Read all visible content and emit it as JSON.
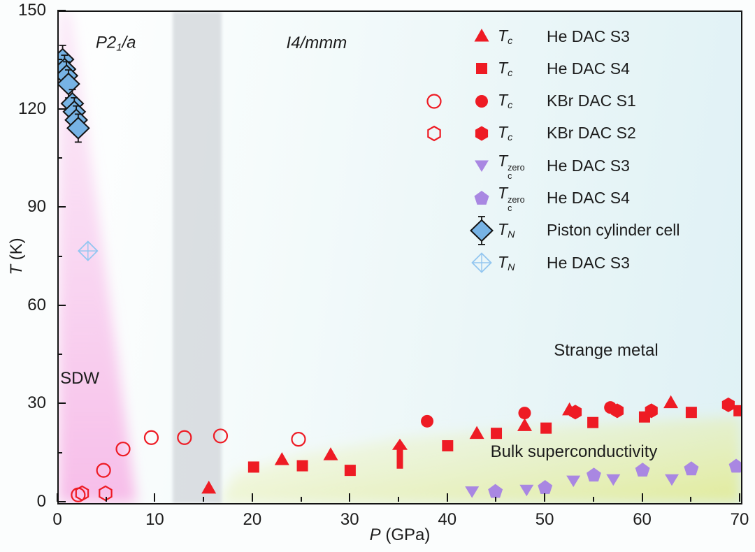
{
  "colors": {
    "red": "#ee1b24",
    "purple": "#a987e2",
    "blue_fill": "#77b3e5",
    "blue_open": "#93c6f0",
    "axis": "#141414",
    "gray_band": "#d6dade",
    "pink_top": "rgba(248,210,241,0.45)",
    "pink_bottom": "rgba(247,186,232,0.95)",
    "yellow_start": "rgba(238,243,196,0.10)",
    "yellow_end": "rgba(226,235,148,0.95)"
  },
  "axes": {
    "xlabel_segments": [
      {
        "text": "P",
        "italic": true
      },
      {
        "text": " (GPa)",
        "italic": false
      }
    ],
    "ylabel_segments": [
      {
        "text": "T",
        "italic": true
      },
      {
        "text": " (K)",
        "italic": false
      }
    ],
    "xlim": [
      0,
      70
    ],
    "ylim": [
      0,
      150
    ],
    "x_major_ticks": [
      0,
      10,
      20,
      30,
      40,
      50,
      60,
      70
    ],
    "x_minor_ticks": [
      5,
      15,
      25,
      35,
      45,
      55,
      65
    ],
    "y_major_ticks": [
      0,
      30,
      60,
      90,
      120,
      150
    ],
    "y_minor_ticks": [
      15,
      45,
      75,
      105,
      135
    ]
  },
  "chart_data": {
    "type": "scatter",
    "xlabel": "P (GPa)",
    "ylabel": "T (K)",
    "xlim": [
      0,
      70
    ],
    "ylim": [
      0,
      150
    ],
    "grid": false,
    "legend_position": "upper-right",
    "regions": {
      "gray_band_x": [
        11.7,
        16.7
      ],
      "pink_sdw_polygon": [
        [
          0,
          150
        ],
        [
          1.3,
          150
        ],
        [
          8,
          0
        ],
        [
          0,
          0
        ]
      ],
      "yellow_sc_polygon": [
        [
          16.5,
          0
        ],
        [
          18,
          9
        ],
        [
          25,
          15
        ],
        [
          35,
          20
        ],
        [
          50,
          23.5
        ],
        [
          70,
          26.5
        ],
        [
          70,
          0
        ]
      ]
    },
    "annotations": [
      {
        "name": "phase-label-p21a",
        "x": 6.0,
        "y": 140,
        "segments": [
          {
            "text": "P",
            "italic": true
          },
          {
            "text": "2",
            "italic": true
          },
          {
            "text": "1",
            "sub": true,
            "italic": true
          },
          {
            "text": "/",
            "italic": true
          },
          {
            "text": "a",
            "italic": true
          }
        ]
      },
      {
        "name": "phase-label-i4mmm",
        "x": 26.6,
        "y": 140,
        "segments": [
          {
            "text": "I",
            "italic": true
          },
          {
            "text": "4/",
            "italic": true
          },
          {
            "text": "mmm",
            "italic": true
          }
        ]
      },
      {
        "name": "phase-label-sdw",
        "x": 2.3,
        "y": 37.5,
        "segments": [
          {
            "text": "SDW",
            "italic": false
          }
        ]
      },
      {
        "name": "phase-label-strange-metal",
        "x": 56.3,
        "y": 46,
        "segments": [
          {
            "text": "Strange metal",
            "italic": false
          }
        ]
      },
      {
        "name": "phase-label-bulk-superconductivity",
        "x": 53.0,
        "y": 15.2,
        "segments": [
          {
            "text": "Bulk superconductivity",
            "italic": false
          }
        ]
      }
    ],
    "series": [
      {
        "name": "Tc KBr DAC S1 (onset, open)",
        "marker": "circle-open",
        "color": "#ee1b24",
        "points": [
          [
            2.0,
            2.5
          ],
          [
            4.6,
            10
          ],
          [
            6.6,
            16.5
          ],
          [
            9.5,
            20
          ],
          [
            12.9,
            20
          ],
          [
            16.6,
            20.5
          ],
          [
            24.6,
            19.5
          ]
        ]
      },
      {
        "name": "Tc KBr DAC S2 (onset, open)",
        "marker": "hexagon-open",
        "color": "#ee1b24",
        "points": [
          [
            2.4,
            3
          ],
          [
            4.8,
            3
          ]
        ]
      },
      {
        "name": "Tc He DAC S3",
        "marker": "triangle-up",
        "color": "#ee1b24",
        "points": [
          [
            15.4,
            4.5
          ],
          [
            22.9,
            13.2
          ],
          [
            27.9,
            14.7
          ],
          [
            42.9,
            21.2
          ],
          [
            47.8,
            23.6
          ],
          [
            52.4,
            28.4
          ],
          [
            62.8,
            30.6
          ]
        ]
      },
      {
        "name": "Tc He DAC S3 (arrow)",
        "marker": "arrow-up",
        "color": "#ee1b24",
        "points": [
          [
            35,
            15
          ]
        ]
      },
      {
        "name": "Tc He DAC S4",
        "marker": "square",
        "color": "#ee1b24",
        "points": [
          [
            20,
            11
          ],
          [
            25,
            11.4
          ],
          [
            29.9,
            10
          ],
          [
            39.9,
            17.5
          ],
          [
            44.9,
            21.3
          ],
          [
            50,
            22.9
          ],
          [
            54.8,
            24.6
          ],
          [
            60.1,
            26.3
          ],
          [
            64.9,
            27.7
          ],
          [
            69.8,
            28.2
          ]
        ]
      },
      {
        "name": "Tc KBr DAC S1",
        "marker": "circle",
        "color": "#ee1b24",
        "points": [
          [
            37.8,
            25
          ],
          [
            47.8,
            27.5
          ],
          [
            56.6,
            29.2
          ]
        ]
      },
      {
        "name": "Tc KBr DAC S2",
        "marker": "hexagon",
        "color": "#ee1b24",
        "points": [
          [
            53.0,
            27.8
          ],
          [
            57.3,
            28.2
          ],
          [
            60.8,
            28.2
          ],
          [
            68.7,
            30
          ]
        ]
      },
      {
        "name": "Tc-zero He DAC S3",
        "marker": "triangle-down",
        "color": "#a987e2",
        "points": [
          [
            42.4,
            3.5
          ],
          [
            48,
            4
          ],
          [
            52.8,
            6.8
          ],
          [
            56.9,
            7.2
          ],
          [
            62.9,
            7.2
          ]
        ]
      },
      {
        "name": "Tc-zero He DAC S4",
        "marker": "pentagon",
        "color": "#a987e2",
        "points": [
          [
            44.8,
            3.5
          ],
          [
            49.9,
            4.7
          ],
          [
            54.9,
            8.5
          ],
          [
            59.9,
            10
          ],
          [
            64.9,
            10.4
          ],
          [
            69.5,
            11.2
          ]
        ]
      },
      {
        "name": "TN Piston cylinder cell",
        "marker": "diamond",
        "color": "#77b3e5",
        "error_bar": 3,
        "points": [
          [
            0.4,
            135.5
          ],
          [
            0.6,
            132.5
          ],
          [
            0.8,
            130.5
          ],
          [
            1.0,
            128
          ],
          [
            1.4,
            122
          ],
          [
            1.6,
            119.5
          ],
          [
            1.8,
            117
          ],
          [
            2.0,
            114.5
          ]
        ]
      },
      {
        "name": "TN He DAC S3",
        "marker": "diamond-open",
        "color": "#93c6f0",
        "points": [
          [
            3.0,
            77
          ]
        ]
      }
    ]
  },
  "legend": {
    "rows": [
      {
        "open_marker": null,
        "marker": "triangle-up",
        "color": "#ee1b24",
        "symbol": {
          "base": "T",
          "sub": "c",
          "sup": null
        },
        "label": "He DAC S3"
      },
      {
        "open_marker": null,
        "marker": "square",
        "color": "#ee1b24",
        "symbol": {
          "base": "T",
          "sub": "c",
          "sup": null
        },
        "label": "He DAC S4"
      },
      {
        "open_marker": "circle-open",
        "marker": "circle",
        "color": "#ee1b24",
        "symbol": {
          "base": "T",
          "sub": "c",
          "sup": null
        },
        "label": "KBr DAC S1"
      },
      {
        "open_marker": "hexagon-open",
        "marker": "hexagon",
        "color": "#ee1b24",
        "symbol": {
          "base": "T",
          "sub": "c",
          "sup": null
        },
        "label": "KBr DAC S2"
      },
      {
        "open_marker": null,
        "marker": "triangle-down",
        "color": "#a987e2",
        "symbol": {
          "base": "T",
          "sub": "c",
          "sup": "zero"
        },
        "label": "He DAC S3"
      },
      {
        "open_marker": null,
        "marker": "pentagon",
        "color": "#a987e2",
        "symbol": {
          "base": "T",
          "sub": "c",
          "sup": "zero"
        },
        "label": "He DAC S4"
      },
      {
        "open_marker": null,
        "marker": "diamond",
        "color": "#77b3e5",
        "symbol": {
          "base": "T",
          "sub": "N",
          "sup": null
        },
        "label": "Piston cylinder cell"
      },
      {
        "open_marker": null,
        "marker": "diamond-open",
        "color": "#93c6f0",
        "symbol": {
          "base": "T",
          "sub": "N",
          "sup": null
        },
        "label": "He DAC S3"
      }
    ]
  }
}
